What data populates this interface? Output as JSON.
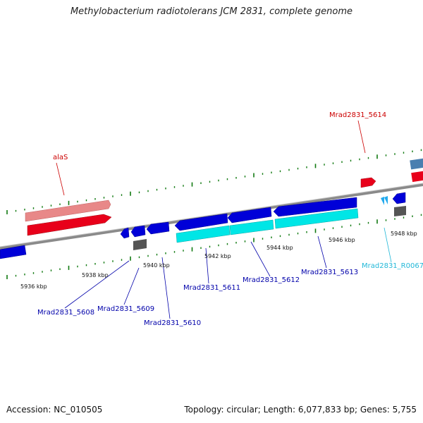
{
  "title": "Methylobacterium radiotolerans JCM 2831, complete genome",
  "footer": {
    "accession": "Accession: NC_010505",
    "topology": "Topology: circular; Length: 6,077,833 bp; Genes: 5,755"
  },
  "kbp_labels": [
    "5936 kbp",
    "5938 kbp",
    "5940 kbp",
    "5942 kbp",
    "5944 kbp",
    "5946 kbp",
    "5948 kbp"
  ],
  "genes": {
    "alaS": "alaS",
    "g5614": "Mrad2831_5614",
    "g5608": "Mrad2831_5608",
    "g5609": "Mrad2831_5609",
    "g5610": "Mrad2831_5610",
    "g5611": "Mrad2831_5611",
    "g5612": "Mrad2831_5612",
    "g5613": "Mrad2831_5613",
    "gR0067": "Mrad2831_R0067"
  },
  "colors": {
    "plus_strand": "#e8001a",
    "plus_strand_light": "#e88888",
    "minus_strand": "#0000d8",
    "rna": "#00e6e6",
    "pseudo": "#555555",
    "steel": "#4a7fb0",
    "backbone": "#8a8a8a",
    "ticks": "#117a11",
    "label_red": "#cc0000",
    "label_blue": "#0000aa",
    "label_cyan": "#22b8d8"
  }
}
